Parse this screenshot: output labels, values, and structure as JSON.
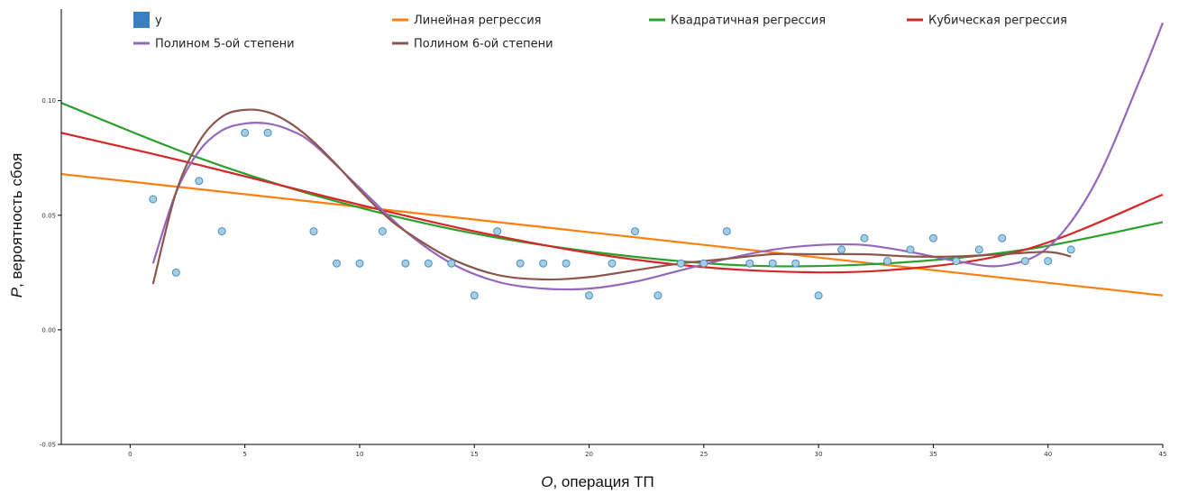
{
  "chart_data": {
    "type": "scatter",
    "xlabel": {
      "var": "O",
      "text": ", операция ТП"
    },
    "ylabel": {
      "var": "P",
      "text": ", вероятность сбоя"
    },
    "xlim": [
      -3,
      45
    ],
    "ylim": [
      -0.05,
      0.14
    ],
    "xticks": [
      "0",
      "5",
      "10",
      "15",
      "20",
      "25",
      "30",
      "35",
      "40",
      "45"
    ],
    "yticks": [
      "-0.05",
      "0.00",
      "0.05",
      "0.10"
    ],
    "legend_position": "top",
    "points": {
      "name": "y",
      "color": "#a6cee3",
      "stroke": "#4a90c0",
      "legend_color": "#3a7fc1",
      "x": [
        1,
        2,
        3,
        4,
        5,
        6,
        8,
        9,
        10,
        11,
        12,
        13,
        14,
        15,
        16,
        17,
        18,
        19,
        20,
        21,
        22,
        23,
        24,
        25,
        26,
        27,
        28,
        29,
        30,
        31,
        32,
        33,
        34,
        35,
        36,
        37,
        38,
        39,
        40,
        41
      ],
      "y": [
        0.057,
        0.025,
        0.065,
        0.043,
        0.086,
        0.086,
        0.043,
        0.029,
        0.029,
        0.043,
        0.029,
        0.029,
        0.029,
        0.015,
        0.043,
        0.029,
        0.029,
        0.029,
        0.015,
        0.029,
        0.043,
        0.015,
        0.029,
        0.029,
        0.043,
        0.029,
        0.029,
        0.029,
        0.015,
        0.035,
        0.04,
        0.03,
        0.035,
        0.04,
        0.03,
        0.035,
        0.04,
        0.03,
        0.03,
        0.035
      ]
    },
    "series": [
      {
        "name": "Линейная регрессия",
        "color": "#ff7f0e",
        "x_range": [
          -3,
          45
        ],
        "x": [
          -3,
          45
        ],
        "y": [
          0.068,
          0.015
        ]
      },
      {
        "name": "Квадратичная регрессия",
        "color": "#2ca02c",
        "x_range": [
          -3,
          45
        ],
        "x": [
          -3,
          3,
          9,
          15,
          21,
          27,
          33,
          39,
          45
        ],
        "y": [
          0.099,
          0.075,
          0.056,
          0.042,
          0.033,
          0.028,
          0.029,
          0.035,
          0.047
        ]
      },
      {
        "name": "Кубическая регрессия",
        "color": "#d62728",
        "x_range": [
          -3,
          45
        ],
        "x": [
          -3,
          3,
          9,
          15,
          21,
          27,
          33,
          39,
          45
        ],
        "y": [
          0.086,
          0.072,
          0.057,
          0.043,
          0.032,
          0.026,
          0.026,
          0.035,
          0.059
        ]
      },
      {
        "name": "Полином 5-ой степени",
        "color": "#9467bd",
        "x_range": [
          1,
          45
        ],
        "x": [
          1,
          2,
          3,
          4,
          5,
          6,
          7,
          8,
          10,
          12,
          14,
          16,
          18,
          20,
          22,
          24,
          26,
          28,
          30,
          32,
          34,
          36,
          38,
          40,
          42,
          44,
          45
        ],
        "y": [
          0.029,
          0.06,
          0.078,
          0.087,
          0.09,
          0.09,
          0.087,
          0.081,
          0.062,
          0.043,
          0.029,
          0.021,
          0.018,
          0.018,
          0.021,
          0.026,
          0.031,
          0.035,
          0.037,
          0.037,
          0.034,
          0.03,
          0.028,
          0.036,
          0.063,
          0.109,
          0.134
        ]
      },
      {
        "name": "Полином 6-ой степени",
        "color": "#8c564b",
        "x_range": [
          1,
          41
        ],
        "x": [
          1,
          2,
          3,
          4,
          5,
          6,
          7,
          8,
          9,
          10,
          11,
          12,
          14,
          16,
          18,
          20,
          22,
          24,
          26,
          28,
          30,
          32,
          34,
          36,
          38,
          40,
          41
        ],
        "y": [
          0.02,
          0.06,
          0.082,
          0.093,
          0.096,
          0.095,
          0.09,
          0.082,
          0.072,
          0.061,
          0.051,
          0.043,
          0.031,
          0.024,
          0.022,
          0.023,
          0.026,
          0.029,
          0.031,
          0.033,
          0.033,
          0.033,
          0.032,
          0.032,
          0.033,
          0.034,
          0.032
        ]
      }
    ]
  }
}
